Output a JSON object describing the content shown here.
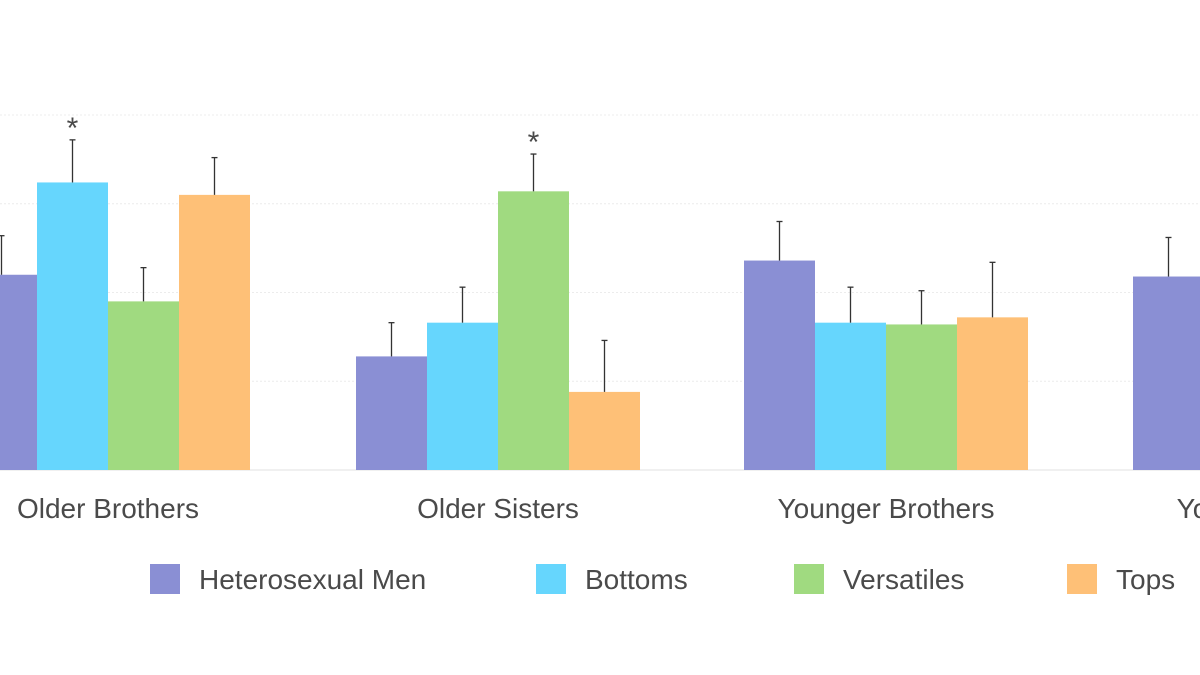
{
  "chart_data": {
    "type": "bar",
    "title": "",
    "xlabel": "",
    "ylabel": "",
    "ylim": [
      0,
      2.0
    ],
    "grid": true,
    "legend_position": "bottom",
    "categories": [
      "Older Brothers",
      "Older Sisters",
      "Younger Brothers",
      "Younger Sisters"
    ],
    "series": [
      {
        "name": "Heterosexual Men",
        "color": "#8a8fd4",
        "values": [
          1.1,
          0.64,
          1.18,
          1.09
        ],
        "errors": [
          0.22,
          0.19,
          0.22,
          0.22
        ]
      },
      {
        "name": "Bottoms",
        "color": "#66d6fd",
        "values": [
          1.62,
          0.83,
          0.83,
          null
        ],
        "errors": [
          0.24,
          0.2,
          0.2,
          null
        ]
      },
      {
        "name": "Versatiles",
        "color": "#a0da80",
        "values": [
          0.95,
          1.57,
          0.82,
          null
        ],
        "errors": [
          0.19,
          0.21,
          0.19,
          null
        ]
      },
      {
        "name": "Tops",
        "color": "#fec077",
        "values": [
          1.55,
          0.44,
          0.86,
          null
        ],
        "errors": [
          0.21,
          0.29,
          0.31,
          null
        ]
      }
    ],
    "annotations": [
      {
        "category": "Older Brothers",
        "series": "Bottoms",
        "text": "*"
      },
      {
        "category": "Older Sisters",
        "series": "Versatiles",
        "text": "*"
      }
    ]
  }
}
